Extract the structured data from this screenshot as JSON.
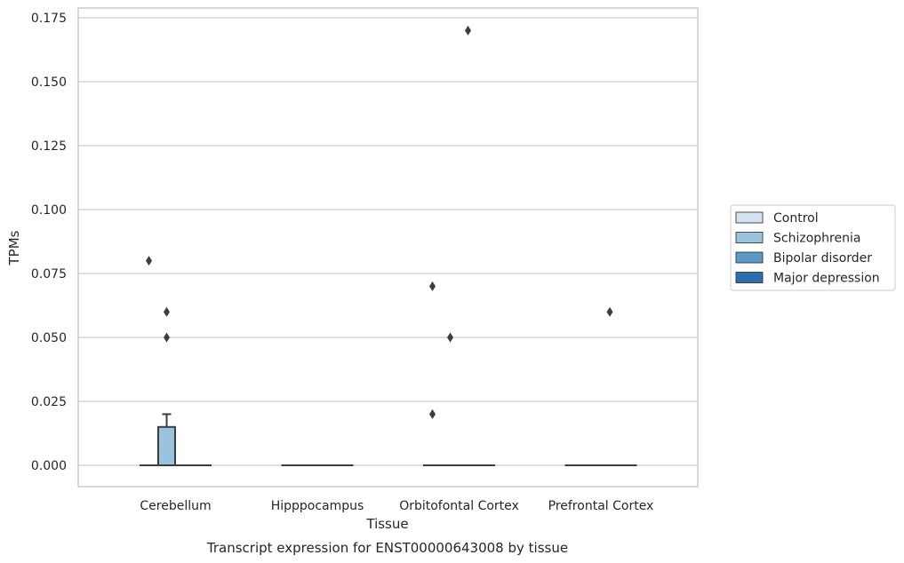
{
  "chart_data": {
    "type": "box",
    "title": "Transcript expression for ENST00000643008 by tissue",
    "xlabel": "Tissue",
    "ylabel": "TPMs",
    "ylim": [
      -0.008,
      0.179
    ],
    "yticks": [
      0.0,
      0.025,
      0.05,
      0.075,
      0.1,
      0.125,
      0.15,
      0.175
    ],
    "ytick_labels": [
      "0.000",
      "0.025",
      "0.050",
      "0.075",
      "0.100",
      "0.125",
      "0.150",
      "0.175"
    ],
    "grid": "horizontal",
    "legend_position": "right",
    "categories": [
      "Cerebellum",
      "Hipppocampus",
      "Orbitofontal Cortex",
      "Prefrontal Cortex"
    ],
    "series": [
      {
        "name": "Control",
        "color": "#d4e3f1",
        "boxes": [
          {
            "q1": 0,
            "median": 0,
            "q3": 0,
            "whislo": 0,
            "whishi": 0,
            "fliers": [
              0.08
            ]
          },
          {
            "q1": 0,
            "median": 0,
            "q3": 0,
            "whislo": 0,
            "whishi": 0,
            "fliers": []
          },
          {
            "q1": 0,
            "median": 0,
            "q3": 0,
            "whislo": 0,
            "whishi": 0,
            "fliers": [
              0.07,
              0.02
            ]
          },
          {
            "q1": 0,
            "median": 0,
            "q3": 0,
            "whislo": 0,
            "whishi": 0,
            "fliers": []
          }
        ]
      },
      {
        "name": "Schizophrenia",
        "color": "#9ac3e0",
        "boxes": [
          {
            "q1": 0,
            "median": 0,
            "q3": 0.015,
            "whislo": 0,
            "whishi": 0.02,
            "fliers": [
              0.06,
              0.05
            ]
          },
          {
            "q1": 0,
            "median": 0,
            "q3": 0,
            "whislo": 0,
            "whishi": 0,
            "fliers": []
          },
          {
            "q1": 0,
            "median": 0,
            "q3": 0,
            "whislo": 0,
            "whishi": 0,
            "fliers": [
              0.05
            ]
          },
          {
            "q1": 0,
            "median": 0,
            "q3": 0,
            "whislo": 0,
            "whishi": 0,
            "fliers": []
          }
        ]
      },
      {
        "name": "Bipolar disorder",
        "color": "#5a9ac9",
        "boxes": [
          {
            "q1": 0,
            "median": 0,
            "q3": 0,
            "whislo": 0,
            "whishi": 0,
            "fliers": []
          },
          {
            "q1": 0,
            "median": 0,
            "q3": 0,
            "whislo": 0,
            "whishi": 0,
            "fliers": []
          },
          {
            "q1": 0,
            "median": 0,
            "q3": 0,
            "whislo": 0,
            "whishi": 0,
            "fliers": [
              0.17
            ]
          },
          {
            "q1": 0,
            "median": 0,
            "q3": 0,
            "whislo": 0,
            "whishi": 0,
            "fliers": [
              0.06
            ]
          }
        ]
      },
      {
        "name": "Major depression",
        "color": "#2c6fb0",
        "boxes": [
          {
            "q1": 0,
            "median": 0,
            "q3": 0,
            "whislo": 0,
            "whishi": 0,
            "fliers": []
          },
          {
            "q1": 0,
            "median": 0,
            "q3": 0,
            "whislo": 0,
            "whishi": 0,
            "fliers": []
          },
          {
            "q1": 0,
            "median": 0,
            "q3": 0,
            "whislo": 0,
            "whishi": 0,
            "fliers": []
          },
          {
            "q1": 0,
            "median": 0,
            "q3": 0,
            "whislo": 0,
            "whishi": 0,
            "fliers": []
          }
        ]
      }
    ]
  }
}
